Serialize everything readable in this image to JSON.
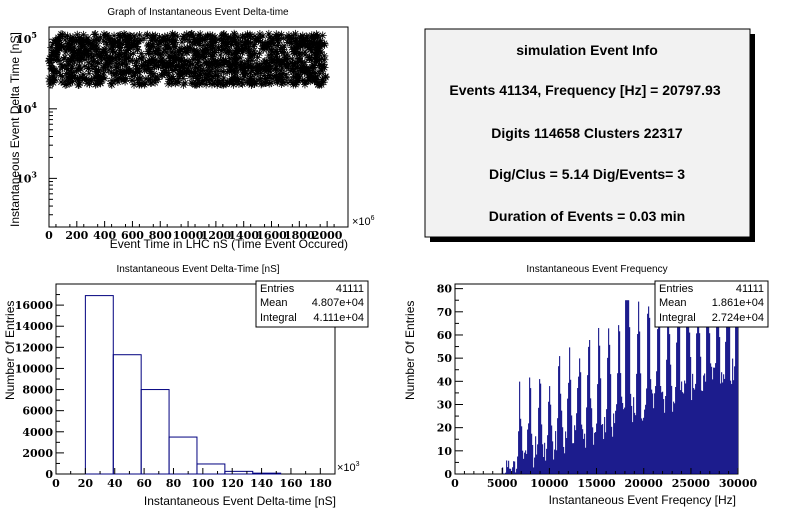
{
  "chart_data": [
    {
      "type": "scatter",
      "title": "Graph of Instantaneous Event Delta-time",
      "xlabel": "Event Time in LHC nS (Time Event Occured)",
      "ylabel": "Instantaneous Event Delta Time [nS]",
      "x_multiplier": "×10",
      "x_multiplier_exp": "6",
      "xlim": [
        0,
        2150
      ],
      "ylim": [
        200,
        150000
      ],
      "yscale": "log",
      "marker": "asterisk",
      "x_ticks": [
        "0",
        "200",
        "400",
        "600",
        "800",
        "1000",
        "1200",
        "1400",
        "1600",
        "1800",
        "2000"
      ],
      "y_ticks": [
        {
          "base": "10",
          "exp": "3",
          "value": 1000
        },
        {
          "base": "10",
          "exp": "4",
          "value": 10000
        },
        {
          "base": "10",
          "exp": "5",
          "value": 100000
        }
      ],
      "point_band": {
        "x_range": [
          0,
          1990
        ],
        "y_range": [
          22000,
          120000
        ]
      }
    },
    {
      "type": "bar",
      "title": "Instantaneous Event Delta-Time [nS]",
      "xlabel": "Instantaneous Event Delta-time [nS]",
      "ylabel": "Number Of Entries",
      "x_multiplier": "×10",
      "x_multiplier_exp": "3",
      "xlim": [
        0,
        190
      ],
      "ylim": [
        0,
        18000
      ],
      "x_ticks": [
        "0",
        "20",
        "40",
        "60",
        "80",
        "100",
        "120",
        "140",
        "160",
        "180"
      ],
      "y_ticks": [
        "0",
        "2000",
        "4000",
        "6000",
        "8000",
        "10000",
        "12000",
        "14000",
        "16000"
      ],
      "bin_edges": [
        20,
        39,
        58,
        77,
        96,
        115,
        134,
        153
      ],
      "values": [
        16900,
        11300,
        8000,
        3500,
        950,
        250,
        80
      ],
      "stats": [
        {
          "label": "Entries",
          "value": "41111"
        },
        {
          "label": "Mean",
          "value": "4.807e+04"
        },
        {
          "label": "Integral",
          "value": "4.111e+04"
        }
      ]
    },
    {
      "type": "bar",
      "title": "Instantaneous Event Frequency",
      "xlabel": "Instantaneous Event Freqency [Hz]",
      "ylabel": "Number Of Entries",
      "xlim": [
        0,
        30000
      ],
      "ylim": [
        0,
        82
      ],
      "x_ticks": [
        "0",
        "5000",
        "10000",
        "15000",
        "20000",
        "25000",
        "30000"
      ],
      "y_ticks": [
        "0",
        "10",
        "20",
        "30",
        "40",
        "50",
        "60",
        "70",
        "80"
      ],
      "fill_color": "#00007f",
      "freq_range": [
        5000,
        30000
      ],
      "stats": [
        {
          "label": "Entries",
          "value": "41111"
        },
        {
          "label": "Mean",
          "value": "1.861e+04"
        },
        {
          "label": "Integral",
          "value": "2.724e+04"
        }
      ]
    }
  ],
  "info_panel": {
    "lines": [
      "simulation Event Info",
      "Events 41134, Frequency [Hz] = 20797.93",
      "Digits 114658 Clusters 22317",
      "Dig/Clus = 5.14 Dig/Events= 3",
      "Duration of Events = 0.03 min"
    ]
  },
  "colors": {
    "hist_line": "#00007f",
    "hist_fill": "#00007f",
    "marker": "#000000",
    "panel_bg": "#f2f2f2"
  }
}
